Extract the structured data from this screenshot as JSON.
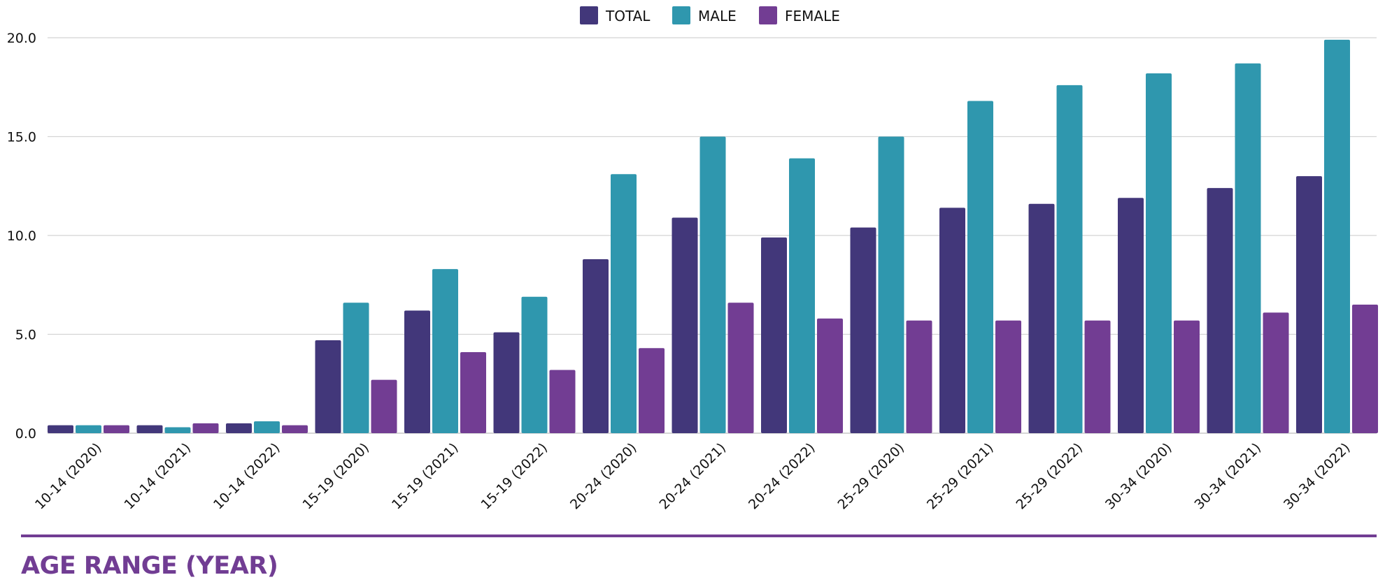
{
  "colors": {
    "total": "#42377a",
    "male": "#2f97ae",
    "female": "#723d93",
    "grid": "#d4d4d4",
    "accent": "#713d93"
  },
  "chart_data": {
    "type": "bar",
    "title": "",
    "xlabel": "AGE RANGE (YEAR)",
    "ylabel": "",
    "ylim": [
      0,
      20
    ],
    "yticks": [
      "0.0",
      "5.0",
      "10.0",
      "15.0",
      "20.0"
    ],
    "grid": true,
    "legend_position": "top-center",
    "categories": [
      "10-14 (2020)",
      "10-14 (2021)",
      "10-14 (2022)",
      "15-19 (2020)",
      "15-19 (2021)",
      "15-19 (2022)",
      "20-24 (2020)",
      "20-24 (2021)",
      "20-24 (2022)",
      "25-29 (2020)",
      "25-29 (2021)",
      "25-29 (2022)",
      "30-34 (2020)",
      "30-34 (2021)",
      "30-34 (2022)"
    ],
    "series": [
      {
        "name": "TOTAL",
        "color": "#42377a",
        "values": [
          0.4,
          0.4,
          0.5,
          4.7,
          6.2,
          5.1,
          8.8,
          10.9,
          9.9,
          10.4,
          11.4,
          11.6,
          11.9,
          12.4,
          13.0
        ]
      },
      {
        "name": "MALE",
        "color": "#2f97ae",
        "values": [
          0.4,
          0.3,
          0.6,
          6.6,
          8.3,
          6.9,
          13.1,
          15.0,
          13.9,
          15.0,
          16.8,
          17.6,
          18.2,
          18.7,
          19.9
        ]
      },
      {
        "name": "FEMALE",
        "color": "#723d93",
        "values": [
          0.4,
          0.5,
          0.4,
          2.7,
          4.1,
          3.2,
          4.3,
          6.6,
          5.8,
          5.7,
          5.7,
          5.7,
          5.7,
          6.1,
          6.5
        ]
      }
    ]
  }
}
